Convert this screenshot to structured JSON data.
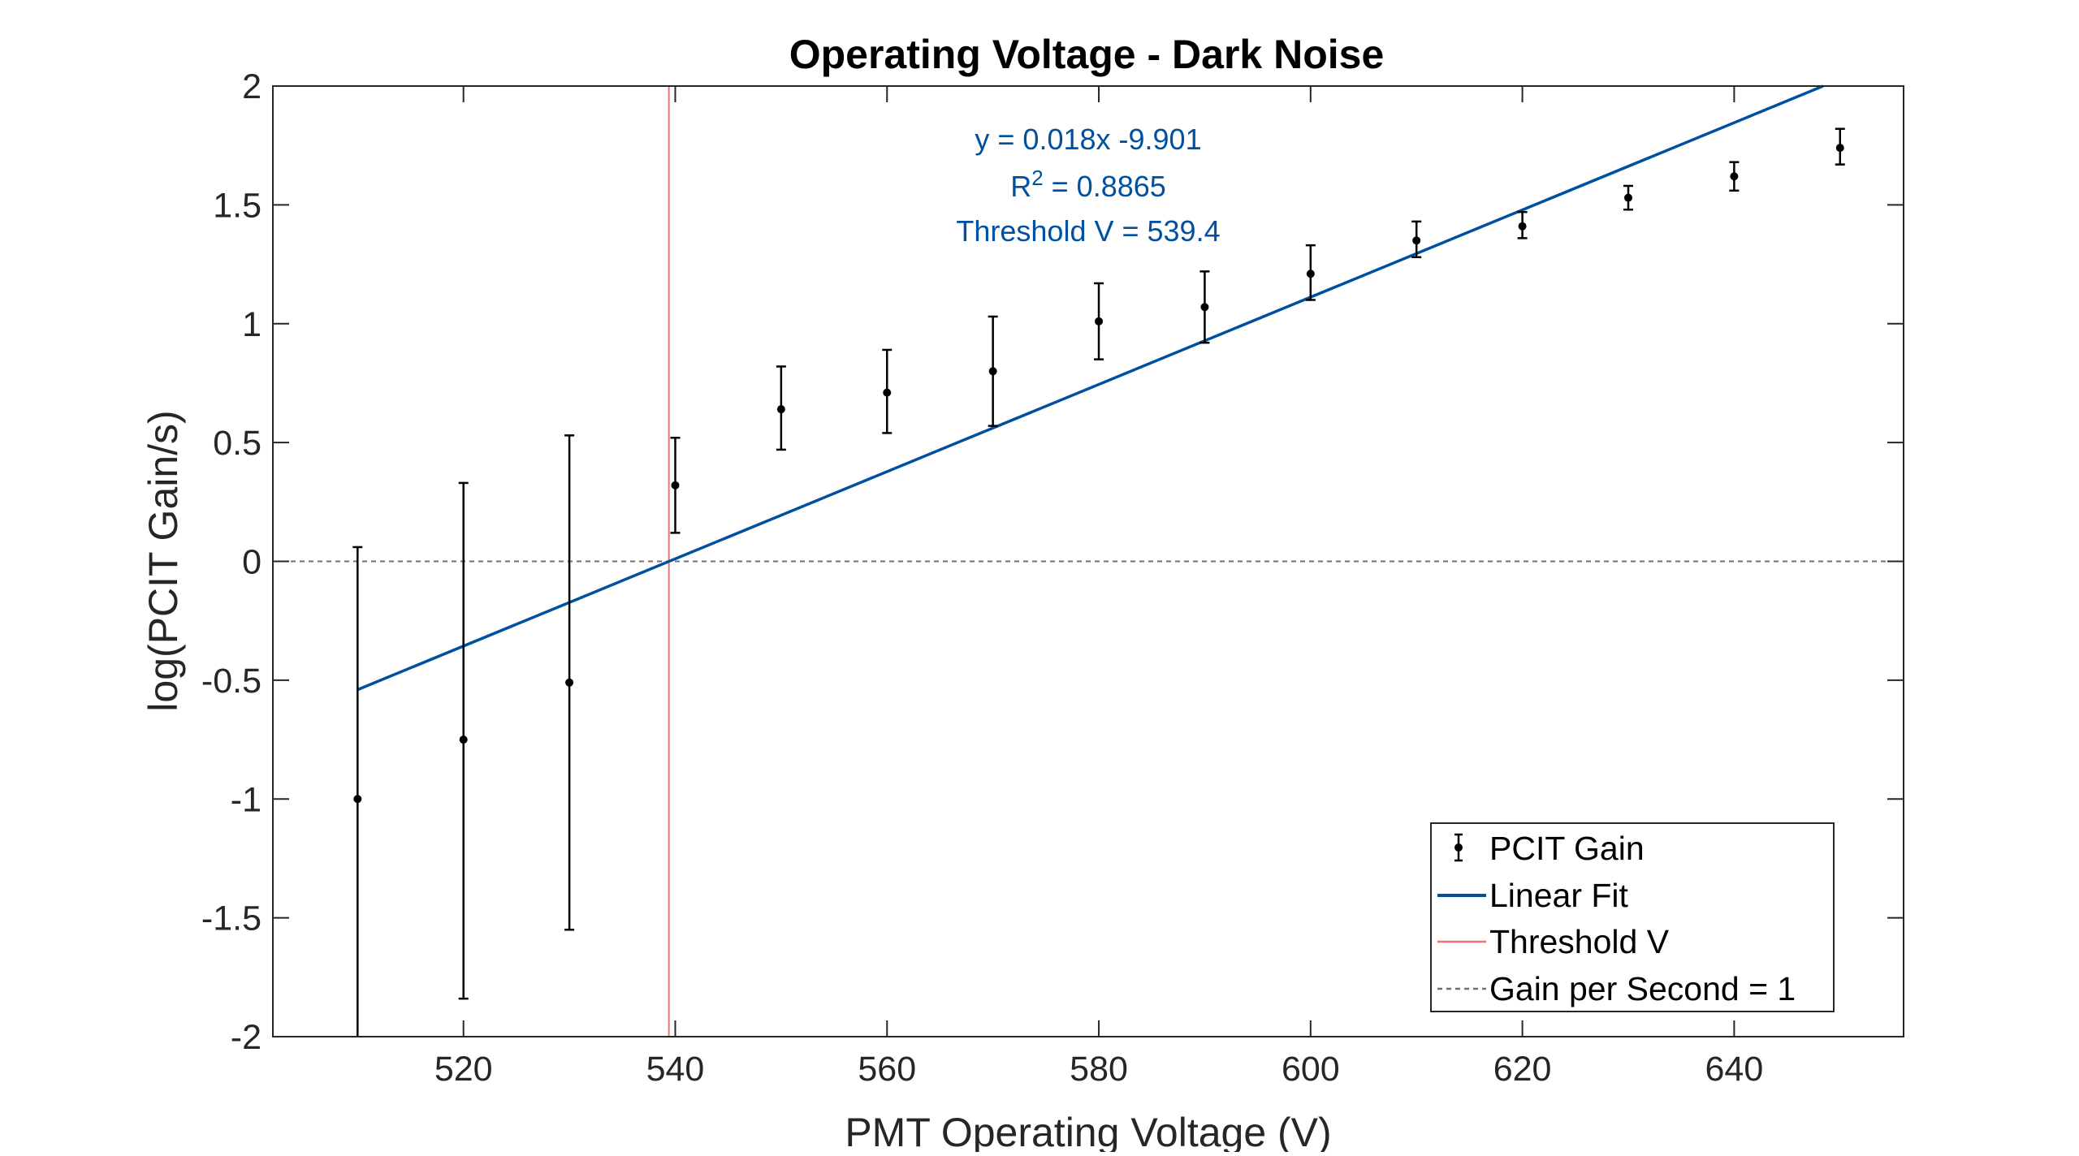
{
  "chart_data": {
    "type": "scatter",
    "title": "Operating Voltage - Dark Noise",
    "xlabel": "PMT Operating Voltage (V)",
    "ylabel": "log(PCIT Gain/s)",
    "xlim": [
      502,
      656
    ],
    "ylim": [
      -2,
      2
    ],
    "xticks": [
      520,
      540,
      560,
      580,
      600,
      620,
      640
    ],
    "yticks": [
      2,
      1.5,
      1,
      0.5,
      0,
      -0.5,
      -1,
      -1.5,
      -2
    ],
    "xtick_labels": [
      "520",
      "540",
      "560",
      "580",
      "600",
      "620",
      "640"
    ],
    "ytick_labels": [
      "2",
      "1.5",
      "1",
      "0.5",
      "0",
      "-0.5",
      "-1",
      "-1.5",
      "-2"
    ],
    "grid": false,
    "legend_position": "bottom-right",
    "series": [
      {
        "name": "PCIT Gain",
        "type": "errorbar",
        "color": "#000000",
        "x": [
          510,
          520,
          530,
          540,
          550,
          560,
          570,
          580,
          590,
          600,
          610,
          620,
          630,
          640,
          650
        ],
        "y": [
          -1.0,
          -0.75,
          -0.51,
          0.32,
          0.64,
          0.71,
          0.8,
          1.01,
          1.07,
          1.21,
          1.35,
          1.41,
          1.53,
          1.62,
          1.74
        ],
        "err_low": [
          -2.0,
          -1.84,
          -1.55,
          0.12,
          0.47,
          0.54,
          0.57,
          0.85,
          0.92,
          1.1,
          1.28,
          1.36,
          1.48,
          1.56,
          1.67
        ],
        "err_high": [
          0.06,
          0.33,
          0.53,
          0.52,
          0.82,
          0.89,
          1.03,
          1.17,
          1.22,
          1.33,
          1.43,
          1.47,
          1.58,
          1.68,
          1.82
        ]
      },
      {
        "name": "Linear Fit",
        "type": "line",
        "color": "#0050A0",
        "x": [
          510,
          648.4
        ],
        "y": [
          -0.54,
          2.0
        ]
      },
      {
        "name": "Threshold V",
        "type": "vline",
        "color": "#F07070",
        "x": 539.4
      },
      {
        "name": "Gain per Second = 1",
        "type": "hline",
        "color": "#707070",
        "y": 0
      }
    ],
    "annotation": {
      "color": "#0050A0",
      "line1": "y = 0.018x -9.901",
      "line2_prefix": "R",
      "line2_sup": "2",
      "line2_suffix": " = 0.8865",
      "line3": "Threshold V = 539.4"
    },
    "legend": [
      "PCIT Gain",
      "Linear Fit",
      "Threshold V",
      "Gain per Second = 1"
    ]
  }
}
